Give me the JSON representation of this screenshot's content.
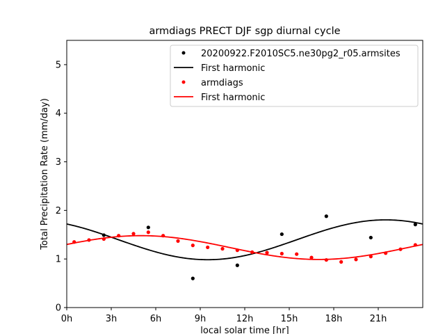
{
  "chart_data": {
    "type": "scatter",
    "title": "armdiags PRECT DJF sgp diurnal cycle",
    "xlabel": "local solar time [hr]",
    "ylabel": "Total Precipitation Rate (mm/day)",
    "xlim": [
      0,
      24
    ],
    "ylim": [
      0,
      5.5
    ],
    "xticks": [
      0,
      3,
      6,
      9,
      12,
      15,
      18,
      21
    ],
    "xtick_labels": [
      "0h",
      "3h",
      "6h",
      "9h",
      "12h",
      "15h",
      "18h",
      "21h"
    ],
    "yticks": [
      0,
      1,
      2,
      3,
      4,
      5
    ],
    "ytick_labels": [
      "0",
      "1",
      "2",
      "3",
      "4",
      "5"
    ],
    "legend_position": "top-right",
    "series": [
      {
        "name": "20200922.F2010SC5.ne30pg2_r05.armsites",
        "kind": "points",
        "color": "#000000",
        "x": [
          2.5,
          5.5,
          8.5,
          11.5,
          14.5,
          17.5,
          20.5,
          23.5
        ],
        "y": [
          1.49,
          1.65,
          0.6,
          0.87,
          1.51,
          1.88,
          1.44,
          1.71
        ]
      },
      {
        "name": "First harmonic",
        "kind": "line",
        "color": "#000000",
        "mean": 1.395,
        "amplitude": 0.41,
        "peak_hour": 21.5
      },
      {
        "name": "armdiags",
        "kind": "points",
        "color": "#ff0000",
        "x": [
          0.5,
          1.5,
          2.5,
          3.5,
          4.5,
          5.5,
          6.5,
          7.5,
          8.5,
          9.5,
          10.5,
          11.5,
          12.5,
          13.5,
          14.5,
          15.5,
          16.5,
          17.5,
          18.5,
          19.5,
          20.5,
          21.5,
          22.5,
          23.5
        ],
        "y": [
          1.35,
          1.39,
          1.41,
          1.48,
          1.52,
          1.55,
          1.48,
          1.37,
          1.28,
          1.24,
          1.21,
          1.18,
          1.14,
          1.13,
          1.11,
          1.1,
          1.03,
          0.98,
          0.94,
          0.99,
          1.05,
          1.12,
          1.2,
          1.29
        ]
      },
      {
        "name": "First harmonic",
        "kind": "line",
        "color": "#ff0000",
        "mean": 1.235,
        "amplitude": 0.245,
        "peak_hour": 5.0
      }
    ]
  }
}
